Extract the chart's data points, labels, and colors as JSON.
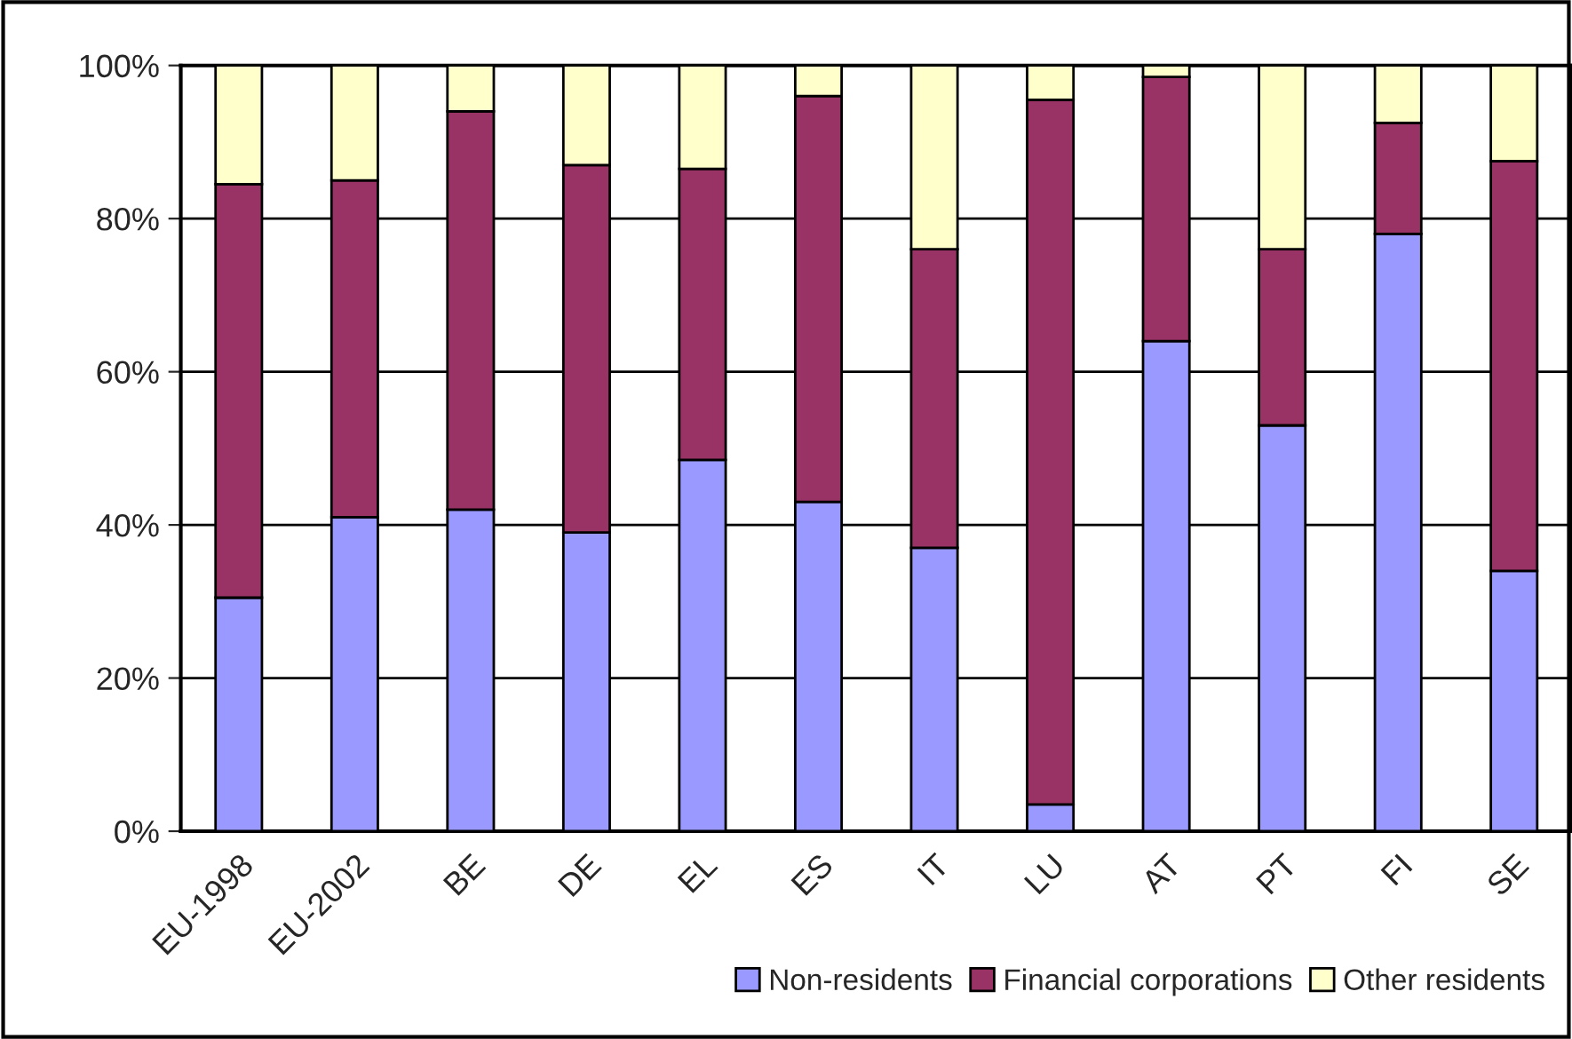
{
  "chart_data": {
    "type": "bar",
    "stacked": true,
    "categories": [
      "EU-1998",
      "EU-2002",
      "BE",
      "DE",
      "EL",
      "ES",
      "IT",
      "LU",
      "AT",
      "PT",
      "FI",
      "SE"
    ],
    "series": [
      {
        "name": "Non-residents",
        "color": "#9999ff",
        "values": [
          30.5,
          41,
          42,
          39,
          48.5,
          43,
          37,
          3.5,
          64,
          53,
          78,
          34
        ]
      },
      {
        "name": "Financial corporations",
        "color": "#993366",
        "values": [
          54,
          44,
          52,
          48,
          38,
          53,
          39,
          92,
          34.5,
          23,
          14.5,
          53.5
        ]
      },
      {
        "name": "Other residents",
        "color": "#ffffcc",
        "values": [
          15.5,
          15,
          6,
          13,
          13.5,
          4,
          24,
          4.5,
          1.5,
          24,
          7.5,
          12.5
        ]
      }
    ],
    "ylim": [
      0,
      100
    ],
    "yticks": [
      {
        "value": 0,
        "label": "0%"
      },
      {
        "value": 20,
        "label": "20%"
      },
      {
        "value": 40,
        "label": "40%"
      },
      {
        "value": 60,
        "label": "60%"
      },
      {
        "value": 80,
        "label": "80%"
      },
      {
        "value": 100,
        "label": "100%"
      }
    ],
    "grid": "y",
    "legend": "bottom right"
  }
}
